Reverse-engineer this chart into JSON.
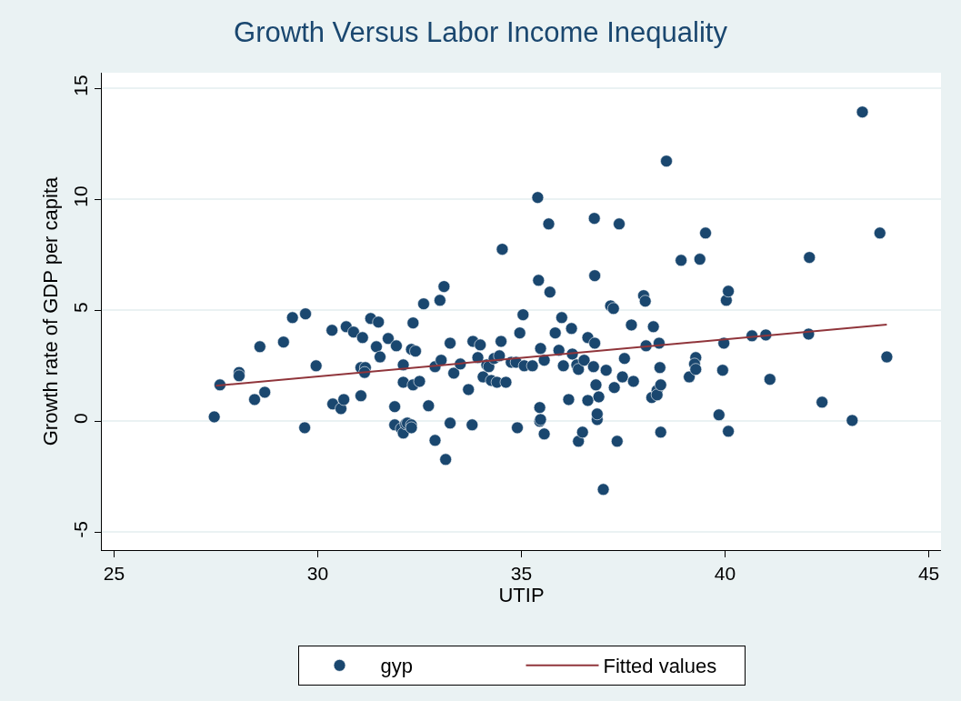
{
  "chart_data": {
    "type": "scatter",
    "title": "Growth Versus Labor Income Inequality",
    "xlabel": "UTIP",
    "ylabel": "Growth rate of GDP per capita",
    "xlim": [
      24.7,
      45.3
    ],
    "xticks": [
      25,
      30,
      35,
      40,
      45
    ],
    "ylim": [
      -5.8,
      15.7
    ],
    "yticks": [
      -5,
      0,
      5,
      10,
      15
    ],
    "grid": "y",
    "legend": "bottom",
    "marker": "circle",
    "series": [
      {
        "name": "gyp",
        "color": "#1a476f",
        "x": [
          27.46,
          27.6,
          28.07,
          28.07,
          28.58,
          28.45,
          28.7,
          29.16,
          29.38,
          29.7,
          29.68,
          29.96,
          30.35,
          30.37,
          30.57,
          30.64,
          30.7,
          30.88,
          31.1,
          31.06,
          31.06,
          31.17,
          31.15,
          31.3,
          31.49,
          31.44,
          31.53,
          31.73,
          31.93,
          31.89,
          31.89,
          32.05,
          32.1,
          32.16,
          32.1,
          32.1,
          32.2,
          32.3,
          32.3,
          32.34,
          32.3,
          32.4,
          32.34,
          32.5,
          32.6,
          33.0,
          33.1,
          32.72,
          32.88,
          32.88,
          33.03,
          33.14,
          33.25,
          33.25,
          33.34,
          33.5,
          33.7,
          33.79,
          33.81,
          33.99,
          33.93,
          34.06,
          34.15,
          34.26,
          34.4,
          34.62,
          34.2,
          34.33,
          34.46,
          34.5,
          34.53,
          34.75,
          34.87,
          34.9,
          34.96,
          35.04,
          35.07,
          35.27,
          35.4,
          35.45,
          35.45,
          35.47,
          35.56,
          35.42,
          35.47,
          35.56,
          35.67,
          35.7,
          35.83,
          35.92,
          35.99,
          36.03,
          36.16,
          36.23,
          36.25,
          36.36,
          36.4,
          36.4,
          36.5,
          36.54,
          36.63,
          36.63,
          36.77,
          36.79,
          36.8,
          36.8,
          36.83,
          36.86,
          36.86,
          36.9,
          37.01,
          37.08,
          37.19,
          37.26,
          37.28,
          37.35,
          37.4,
          37.48,
          37.53,
          37.7,
          37.75,
          38.0,
          38.04,
          38.06,
          38.2,
          38.24,
          38.33,
          38.33,
          38.38,
          38.4,
          38.42,
          38.42,
          38.56,
          38.92,
          39.12,
          39.28,
          39.25,
          39.28,
          39.38,
          39.52,
          39.85,
          39.94,
          39.97,
          40.03,
          40.08,
          40.08,
          40.66,
          41.0,
          41.1,
          42.05,
          42.07,
          42.38,
          43.12,
          43.37,
          43.8,
          43.97
        ],
        "values": [
          0.2,
          1.64,
          2.2,
          2.05,
          3.36,
          0.98,
          1.31,
          3.57,
          4.67,
          4.84,
          -0.29,
          2.5,
          4.1,
          0.78,
          0.57,
          0.98,
          4.26,
          4.02,
          3.77,
          1.15,
          2.42,
          2.42,
          2.2,
          4.63,
          4.47,
          3.36,
          2.9,
          3.73,
          3.4,
          -0.16,
          0.66,
          -0.33,
          -0.53,
          -0.12,
          2.54,
          1.76,
          -0.08,
          -0.16,
          -0.29,
          4.43,
          3.24,
          3.16,
          1.64,
          1.8,
          5.29,
          5.45,
          6.07,
          0.7,
          -0.86,
          2.46,
          2.75,
          -1.72,
          -0.08,
          3.52,
          2.17,
          2.58,
          1.43,
          -0.16,
          3.6,
          3.44,
          2.87,
          2.0,
          2.54,
          1.84,
          1.76,
          1.76,
          2.46,
          2.83,
          2.95,
          3.6,
          7.75,
          2.66,
          2.66,
          -0.29,
          3.98,
          4.8,
          2.5,
          2.5,
          10.08,
          0,
          0.62,
          0.08,
          -0.57,
          6.35,
          3.28,
          2.75,
          8.89,
          5.82,
          3.98,
          3.2,
          4.67,
          2.5,
          0.98,
          4.18,
          3.03,
          2.54,
          2.34,
          -0.9,
          -0.49,
          2.75,
          0.94,
          3.77,
          2.46,
          9.14,
          6.56,
          3.52,
          1.64,
          0.08,
          0.33,
          1.1,
          -3.07,
          2.3,
          5.2,
          5.08,
          1.52,
          -0.9,
          8.89,
          2.0,
          2.83,
          4.34,
          1.8,
          5.66,
          5.41,
          3.4,
          1.07,
          4.26,
          1.39,
          1.19,
          3.52,
          2.42,
          1.64,
          -0.49,
          11.72,
          7.25,
          2.0,
          2.87,
          2.58,
          2.34,
          7.3,
          8.48,
          0.29,
          2.3,
          3.52,
          5.45,
          5.86,
          -0.45,
          3.85,
          3.89,
          1.89,
          3.93,
          7.38,
          0.86,
          0.04,
          13.93,
          8.48,
          2.9
        ]
      },
      {
        "name": "Fitted values",
        "type": "line",
        "color": "#90353b",
        "marker": "none",
        "x": [
          27.5,
          43.97
        ],
        "values": [
          1.6,
          4.36
        ]
      }
    ]
  }
}
